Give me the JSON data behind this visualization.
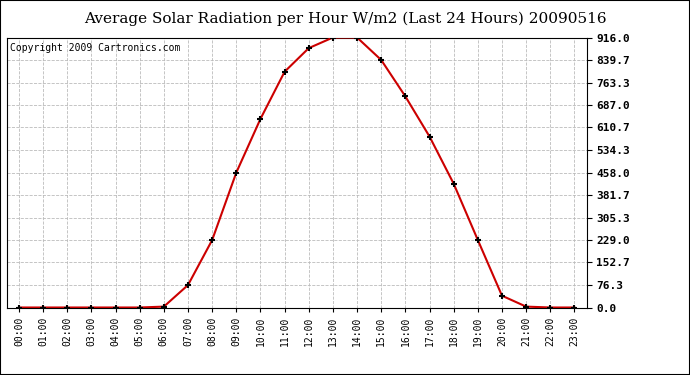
{
  "title": "Average Solar Radiation per Hour W/m2 (Last 24 Hours) 20090516",
  "copyright": "Copyright 2009 Cartronics.com",
  "hours": [
    "00:00",
    "01:00",
    "02:00",
    "03:00",
    "04:00",
    "05:00",
    "06:00",
    "07:00",
    "08:00",
    "09:00",
    "10:00",
    "11:00",
    "12:00",
    "13:00",
    "14:00",
    "15:00",
    "16:00",
    "17:00",
    "18:00",
    "19:00",
    "20:00",
    "21:00",
    "22:00",
    "23:00"
  ],
  "values": [
    0.0,
    0.0,
    0.0,
    0.0,
    0.0,
    0.0,
    3.0,
    76.3,
    229.0,
    458.0,
    640.0,
    800.0,
    880.0,
    916.0,
    916.0,
    839.7,
    716.0,
    580.0,
    420.0,
    229.0,
    40.0,
    3.0,
    0.0,
    0.0
  ],
  "line_color": "#cc0000",
  "marker_color": "#000000",
  "bg_color": "#ffffff",
  "plot_bg_color": "#ffffff",
  "grid_color": "#bbbbbb",
  "yticks": [
    0.0,
    76.3,
    152.7,
    229.0,
    305.3,
    381.7,
    458.0,
    534.3,
    610.7,
    687.0,
    763.3,
    839.7,
    916.0
  ],
  "ymax": 916.0,
  "ymin": 0.0,
  "title_fontsize": 11,
  "copyright_fontsize": 7
}
